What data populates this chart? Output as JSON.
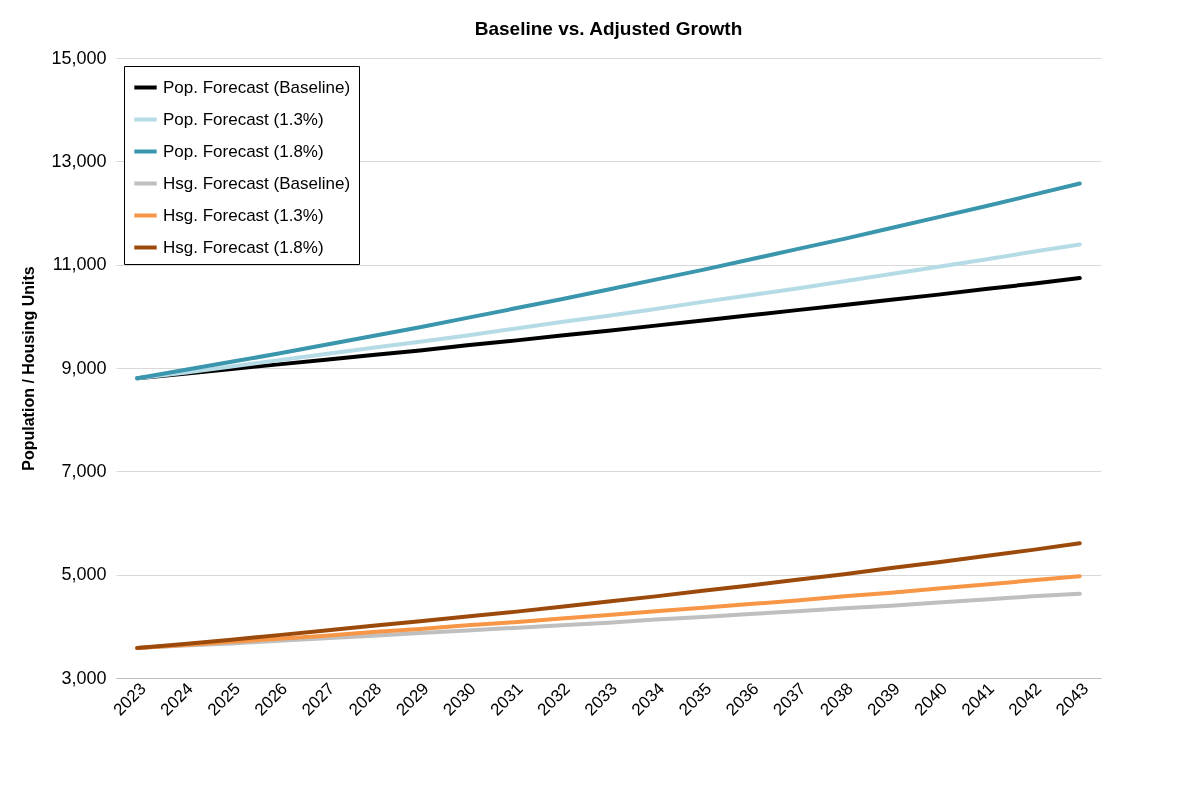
{
  "chart_data": {
    "type": "line",
    "title": "Baseline vs. Adjusted Growth",
    "ylabel": "Population / Housing Units",
    "categories": [
      "2023",
      "2024",
      "2025",
      "2026",
      "2027",
      "2028",
      "2029",
      "2030",
      "2031",
      "2032",
      "2033",
      "2034",
      "2035",
      "2036",
      "2037",
      "2038",
      "2039",
      "2040",
      "2041",
      "2042",
      "2043"
    ],
    "series": [
      {
        "name": "Pop. Forecast (Baseline)",
        "color": "#000000",
        "values": [
          8800,
          8890,
          8980,
          9070,
          9160,
          9250,
          9340,
          9440,
          9530,
          9630,
          9720,
          9820,
          9920,
          10020,
          10120,
          10220,
          10320,
          10420,
          10530,
          10630,
          10740
        ]
      },
      {
        "name": "Pop. Forecast (1.3%)",
        "color": "#b4dbe6",
        "values": [
          8800,
          8910,
          9030,
          9150,
          9270,
          9390,
          9510,
          9630,
          9760,
          9890,
          10010,
          10140,
          10280,
          10410,
          10540,
          10680,
          10820,
          10960,
          11100,
          11250,
          11390
        ]
      },
      {
        "name": "Pop. Forecast (1.8%)",
        "color": "#3a96ad",
        "values": [
          8800,
          8960,
          9120,
          9280,
          9450,
          9620,
          9790,
          9970,
          10150,
          10330,
          10520,
          10710,
          10900,
          11100,
          11300,
          11500,
          11710,
          11920,
          12130,
          12350,
          12570
        ]
      },
      {
        "name": "Hsg. Forecast (Baseline)",
        "color": "#bfbfbf",
        "values": [
          3580,
          3630,
          3670,
          3720,
          3770,
          3820,
          3870,
          3920,
          3970,
          4020,
          4070,
          4130,
          4180,
          4240,
          4290,
          4350,
          4400,
          4460,
          4520,
          4580,
          4630
        ]
      },
      {
        "name": "Hsg. Forecast (1.3%)",
        "color": "#f79646",
        "values": [
          3580,
          3640,
          3700,
          3760,
          3820,
          3890,
          3950,
          4020,
          4080,
          4150,
          4220,
          4290,
          4360,
          4430,
          4500,
          4580,
          4650,
          4730,
          4810,
          4890,
          4970
        ]
      },
      {
        "name": "Hsg. Forecast (1.8%)",
        "color": "#9c4a0c",
        "values": [
          3580,
          3660,
          3740,
          3830,
          3920,
          4010,
          4100,
          4190,
          4280,
          4380,
          4480,
          4580,
          4690,
          4790,
          4900,
          5010,
          5130,
          5240,
          5360,
          5480,
          5610
        ]
      }
    ],
    "ylim": [
      3000,
      15000
    ],
    "yticks": [
      {
        "value": 3000,
        "label": "3,000"
      },
      {
        "value": 5000,
        "label": "5,000"
      },
      {
        "value": 7000,
        "label": "7,000"
      },
      {
        "value": 9000,
        "label": "9,000"
      },
      {
        "value": 11000,
        "label": "11,000"
      },
      {
        "value": 13000,
        "label": "13,000"
      },
      {
        "value": 15000,
        "label": "15,000"
      }
    ],
    "grid": "y",
    "legend": "top left",
    "marker": "none",
    "line_style": "solid"
  }
}
